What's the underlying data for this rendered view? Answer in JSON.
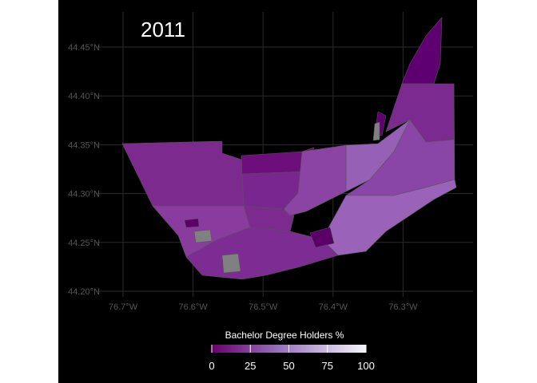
{
  "map": {
    "title": "2011",
    "x_ticks": [
      {
        "value": -76.7,
        "label": "76.7°W"
      },
      {
        "value": -76.6,
        "label": "76.6°W"
      },
      {
        "value": -76.5,
        "label": "76.5°W"
      },
      {
        "value": -76.4,
        "label": "76.4°W"
      },
      {
        "value": -76.3,
        "label": "76.3°W"
      }
    ],
    "y_ticks": [
      {
        "value": 44.2,
        "label": "44.20°N"
      },
      {
        "value": 44.25,
        "label": "44.25°N"
      },
      {
        "value": 44.3,
        "label": "44.30°N"
      },
      {
        "value": 44.35,
        "label": "44.35°N"
      },
      {
        "value": 44.4,
        "label": "44.40°N"
      },
      {
        "value": 44.45,
        "label": "44.45°N"
      }
    ],
    "legend": {
      "title": "Bachelor Degree Holders %",
      "ticks": [
        0,
        25,
        50,
        75,
        100
      ],
      "range": [
        0,
        100
      ],
      "color_low": "#6a006e",
      "color_mid": "#9a75c0",
      "color_high": "#f4f6fa",
      "missing_color": "#808080"
    },
    "colors": {
      "background": "#000000",
      "grid": "#2b2b2b",
      "tick_text": "#555555",
      "border": "#555555"
    }
  }
}
